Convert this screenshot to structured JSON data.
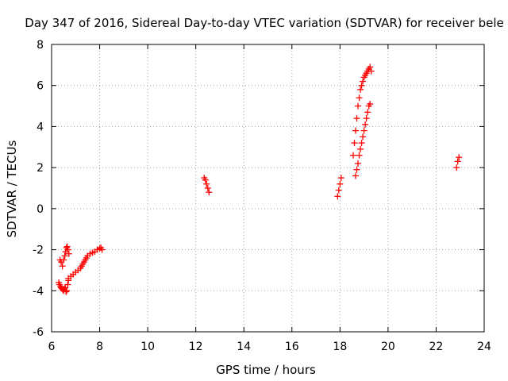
{
  "chart_data": {
    "type": "scatter",
    "title": "Day 347 of 2016, Sidereal Day-to-day VTEC variation (SDTVAR) for receiver bele",
    "xlabel": "GPS time / hours",
    "ylabel": "SDTVAR / TECUs",
    "xlim": [
      6,
      24
    ],
    "ylim": [
      -6,
      8
    ],
    "xticks": [
      6,
      8,
      10,
      12,
      14,
      16,
      18,
      20,
      22,
      24
    ],
    "yticks": [
      -6,
      -4,
      -2,
      0,
      2,
      4,
      6,
      8
    ],
    "grid": true,
    "marker": "+",
    "colors": {
      "points": "#ff0000",
      "grid": "#a0a0a0",
      "frame": "#000000"
    },
    "series": [
      {
        "x": [
          6.3,
          6.33,
          6.37,
          6.4,
          6.43,
          6.47,
          6.5,
          6.53,
          6.57,
          6.6,
          6.63,
          6.67,
          6.7,
          6.35,
          6.4,
          6.45,
          6.5,
          6.55,
          6.58,
          6.62,
          6.65,
          6.68,
          6.72,
          6.7,
          6.8,
          6.9,
          7.0,
          7.1,
          7.2,
          7.25,
          7.3,
          7.35,
          7.4,
          7.45,
          7.5,
          7.6,
          7.7,
          7.8,
          7.9,
          8.0,
          8.05,
          8.1,
          12.35,
          12.4,
          12.45,
          12.5,
          12.55,
          17.9,
          17.95,
          18.0,
          18.05,
          18.55,
          18.6,
          18.65,
          18.7,
          18.75,
          18.8,
          18.85,
          18.9,
          18.95,
          19.0,
          19.05,
          19.1,
          19.15,
          19.2,
          19.25,
          19.3,
          18.65,
          18.7,
          18.75,
          18.8,
          18.85,
          18.9,
          18.95,
          19.0,
          19.05,
          19.1,
          19.15,
          19.2,
          19.25,
          22.85,
          22.9,
          22.95
        ],
        "y": [
          -3.6,
          -3.7,
          -3.8,
          -3.85,
          -3.9,
          -3.95,
          -4.0,
          -3.9,
          -3.85,
          -4.05,
          -4.0,
          -3.7,
          -3.5,
          -2.5,
          -2.6,
          -2.8,
          -2.5,
          -2.3,
          -2.1,
          -1.9,
          -1.85,
          -2.0,
          -2.2,
          -3.4,
          -3.3,
          -3.2,
          -3.1,
          -3.0,
          -2.9,
          -2.8,
          -2.7,
          -2.6,
          -2.5,
          -2.4,
          -2.3,
          -2.2,
          -2.15,
          -2.1,
          -2.0,
          -1.95,
          -1.9,
          -2.0,
          1.5,
          1.4,
          1.2,
          1.0,
          0.8,
          0.6,
          0.9,
          1.2,
          1.5,
          2.6,
          3.2,
          3.8,
          4.4,
          5.0,
          5.4,
          5.8,
          6.0,
          6.2,
          6.4,
          6.5,
          6.6,
          6.7,
          6.8,
          6.9,
          6.7,
          1.6,
          1.9,
          2.2,
          2.6,
          2.9,
          3.2,
          3.5,
          3.8,
          4.1,
          4.4,
          4.7,
          5.0,
          5.1,
          2.0,
          2.3,
          2.5
        ]
      }
    ]
  }
}
